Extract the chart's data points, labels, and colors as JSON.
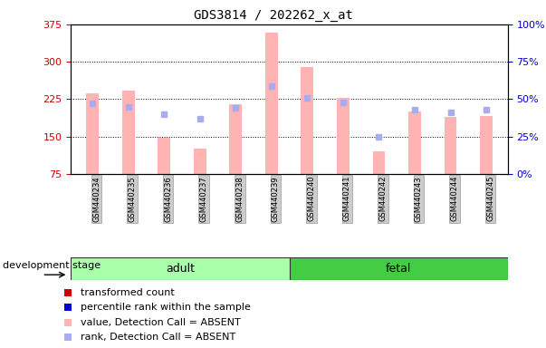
{
  "title": "GDS3814 / 202262_x_at",
  "samples": [
    "GSM440234",
    "GSM440235",
    "GSM440236",
    "GSM440237",
    "GSM440238",
    "GSM440239",
    "GSM440240",
    "GSM440241",
    "GSM440242",
    "GSM440243",
    "GSM440244",
    "GSM440245"
  ],
  "ylim_left": [
    75,
    375
  ],
  "ylim_right": [
    0,
    100
  ],
  "yticks_left": [
    75,
    150,
    225,
    300,
    375
  ],
  "yticks_right": [
    0,
    25,
    50,
    75,
    100
  ],
  "ytick_labels_right": [
    "0%",
    "25%",
    "50%",
    "75%",
    "100%"
  ],
  "bar_values": [
    237,
    243,
    148,
    126,
    215,
    358,
    290,
    228,
    120,
    200,
    190,
    192
  ],
  "rank_values": [
    47,
    45,
    40,
    37,
    44,
    59,
    51,
    48,
    25,
    43,
    41,
    43
  ],
  "bar_color": "#ffb3b3",
  "rank_color": "#aaaaee",
  "group_adult_color": "#aaffaa",
  "group_fetal_color": "#44cc44",
  "legend_entries": [
    {
      "label": "transformed count",
      "color": "#cc0000"
    },
    {
      "label": "percentile rank within the sample",
      "color": "#0000cc"
    },
    {
      "label": "value, Detection Call = ABSENT",
      "color": "#ffb3b3"
    },
    {
      "label": "rank, Detection Call = ABSENT",
      "color": "#aaaaee"
    }
  ],
  "left_tick_color": "#cc0000",
  "right_tick_color": "#0000cc",
  "bar_width": 0.35,
  "background_color": "#ffffff"
}
